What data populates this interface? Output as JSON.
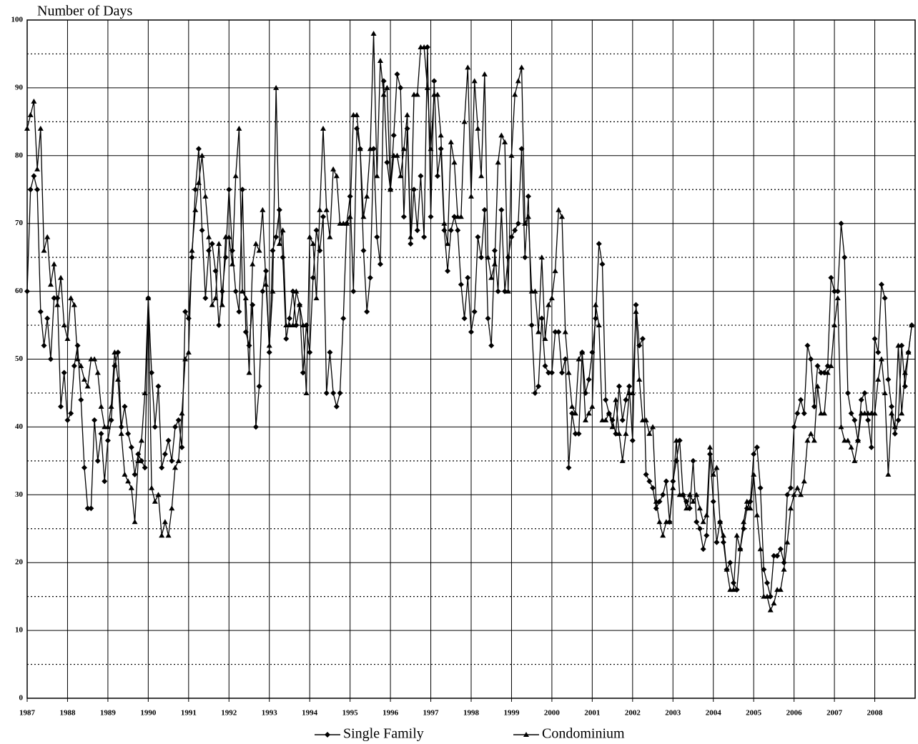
{
  "chart_data": {
    "type": "line",
    "y_label": "Number of Days",
    "categories": [
      "1987",
      null,
      null,
      null,
      null,
      null,
      null,
      null,
      null,
      null,
      null,
      null,
      "1988",
      null,
      null,
      null,
      null,
      null,
      null,
      null,
      null,
      null,
      null,
      null,
      "1989",
      null,
      null,
      null,
      null,
      null,
      null,
      null,
      null,
      null,
      null,
      null,
      "1990",
      null,
      null,
      null,
      null,
      null,
      null,
      null,
      null,
      null,
      null,
      null,
      "1991",
      null,
      null,
      null,
      null,
      null,
      null,
      null,
      null,
      null,
      null,
      null,
      "1992",
      null,
      null,
      null,
      null,
      null,
      null,
      null,
      null,
      null,
      null,
      null,
      "1993",
      null,
      null,
      null,
      null,
      null,
      null,
      null,
      null,
      null,
      null,
      null,
      "1994",
      null,
      null,
      null,
      null,
      null,
      null,
      null,
      null,
      null,
      null,
      null,
      "1995",
      null,
      null,
      null,
      null,
      null,
      null,
      null,
      null,
      null,
      null,
      null,
      "1996",
      null,
      null,
      null,
      null,
      null,
      null,
      null,
      null,
      null,
      null,
      null,
      "1997",
      null,
      null,
      null,
      null,
      null,
      null,
      null,
      null,
      null,
      null,
      null,
      "1998",
      null,
      null,
      null,
      null,
      null,
      null,
      null,
      null,
      null,
      null,
      null,
      "1999",
      null,
      null,
      null,
      null,
      null,
      null,
      null,
      null,
      null,
      null,
      null,
      "2000",
      null,
      null,
      null,
      null,
      null,
      null,
      null,
      null,
      null,
      null,
      null,
      "2001",
      null,
      null,
      null,
      null,
      null,
      null,
      null,
      null,
      null,
      null,
      null,
      "2002",
      null,
      null,
      null,
      null,
      null,
      null,
      null,
      null,
      null,
      null,
      null,
      "2003",
      null,
      null,
      null,
      null,
      null,
      null,
      null,
      null,
      null,
      null,
      null,
      "2004",
      null,
      null,
      null,
      null,
      null,
      null,
      null,
      null,
      null,
      null,
      null,
      "2005",
      null,
      null,
      null,
      null,
      null,
      null,
      null,
      null,
      null,
      null,
      null,
      "2006",
      null,
      null,
      null,
      null,
      null,
      null,
      null,
      null,
      null,
      null,
      null,
      "2007",
      null,
      null,
      null,
      null,
      null,
      null,
      null,
      null,
      null,
      null,
      null,
      "2008",
      null,
      null,
      null,
      null,
      null,
      null,
      null,
      null,
      null,
      null,
      null
    ],
    "series": [
      {
        "name": "Single Family",
        "color": "#000000",
        "marker": "diamond",
        "values": [
          60,
          75,
          77,
          75,
          57,
          52,
          56,
          50,
          59,
          59,
          43,
          48,
          41,
          42,
          49,
          52,
          44,
          34,
          28,
          28,
          41,
          35,
          39,
          32,
          38,
          41,
          49,
          51,
          40,
          43,
          39,
          37,
          33,
          36,
          35,
          34,
          59,
          48,
          40,
          46,
          34,
          36,
          38,
          35,
          40,
          41,
          37,
          57,
          56,
          65,
          75,
          81,
          69,
          59,
          66,
          67,
          63,
          55,
          60,
          65,
          75,
          66,
          60,
          57,
          75,
          54,
          52,
          58,
          40,
          46,
          60,
          63,
          51,
          66,
          68,
          72,
          65,
          53,
          56,
          60,
          55,
          58,
          48,
          55,
          51,
          62,
          69,
          66,
          71,
          45,
          51,
          45,
          43,
          45,
          56,
          70,
          74,
          60,
          84,
          81,
          66,
          57,
          62,
          81,
          68,
          64,
          91,
          79,
          75,
          83,
          92,
          90,
          71,
          84,
          67,
          75,
          69,
          77,
          68,
          96,
          71,
          91,
          77,
          81,
          69,
          63,
          69,
          71,
          69,
          61,
          56,
          62,
          54,
          57,
          68,
          65,
          72,
          56,
          52,
          66,
          60,
          72,
          60,
          65,
          68,
          69,
          70,
          81,
          65,
          74,
          55,
          45,
          46,
          56,
          49,
          48,
          48,
          54,
          54,
          48,
          50,
          34,
          42,
          39,
          39,
          51,
          45,
          47,
          51,
          56,
          67,
          64,
          44,
          42,
          41,
          39,
          46,
          41,
          44,
          46,
          38,
          58,
          52,
          53,
          33,
          32,
          31,
          28,
          29,
          30,
          32,
          26,
          32,
          35,
          38,
          30,
          29,
          28,
          35,
          26,
          25,
          22,
          24,
          36,
          29,
          23,
          26,
          23,
          19,
          20,
          17,
          16,
          22,
          25,
          28,
          29,
          36,
          37,
          31,
          19,
          17,
          15,
          21,
          21,
          22,
          20,
          30,
          31,
          40,
          42,
          44,
          42,
          52,
          50,
          43,
          49,
          48,
          48,
          49,
          62,
          60,
          60,
          70,
          65,
          45,
          42,
          41,
          38,
          44,
          45,
          41,
          37,
          53,
          51,
          61,
          59,
          47,
          43,
          39,
          41,
          52,
          46,
          51,
          55
        ]
      },
      {
        "name": "Condominium",
        "color": "#000000",
        "marker": "triangle",
        "values": [
          84,
          86,
          88,
          78,
          84,
          66,
          68,
          61,
          64,
          58,
          62,
          55,
          53,
          59,
          58,
          50,
          49,
          47,
          46,
          50,
          50,
          48,
          43,
          40,
          40,
          43,
          51,
          47,
          39,
          33,
          32,
          31,
          26,
          35,
          38,
          45,
          59,
          31,
          29,
          30,
          24,
          26,
          24,
          28,
          34,
          35,
          42,
          50,
          51,
          66,
          72,
          76,
          80,
          74,
          68,
          58,
          59,
          67,
          58,
          68,
          68,
          64,
          77,
          84,
          60,
          59,
          48,
          64,
          67,
          66,
          72,
          61,
          52,
          60,
          90,
          67,
          69,
          55,
          55,
          55,
          60,
          58,
          55,
          45,
          68,
          67,
          59,
          72,
          84,
          72,
          68,
          78,
          77,
          70,
          70,
          70,
          71,
          86,
          86,
          81,
          71,
          74,
          81,
          98,
          77,
          94,
          89,
          90,
          75,
          80,
          80,
          77,
          81,
          86,
          68,
          89,
          89,
          96,
          96,
          90,
          81,
          89,
          89,
          83,
          70,
          67,
          82,
          79,
          71,
          71,
          85,
          93,
          74,
          91,
          84,
          77,
          92,
          65,
          62,
          64,
          79,
          83,
          82,
          60,
          80,
          89,
          91,
          93,
          70,
          71,
          60,
          60,
          54,
          65,
          53,
          58,
          59,
          63,
          72,
          71,
          54,
          48,
          43,
          42,
          50,
          51,
          41,
          42,
          43,
          58,
          55,
          41,
          41,
          42,
          40,
          44,
          39,
          35,
          39,
          45,
          45,
          57,
          47,
          41,
          41,
          39,
          40,
          29,
          26,
          24,
          26,
          26,
          31,
          38,
          30,
          30,
          28,
          30,
          29,
          30,
          28,
          26,
          27,
          37,
          33,
          34,
          26,
          24,
          19,
          16,
          16,
          24,
          22,
          26,
          29,
          28,
          33,
          27,
          22,
          15,
          15,
          13,
          14,
          16,
          16,
          19,
          23,
          28,
          30,
          31,
          30,
          32,
          38,
          39,
          38,
          46,
          42,
          42,
          48,
          49,
          55,
          59,
          40,
          38,
          38,
          37,
          35,
          38,
          42,
          42,
          42,
          42,
          42,
          47,
          50,
          45,
          33,
          42,
          40,
          52,
          42,
          48,
          51,
          55
        ]
      }
    ],
    "ylim": [
      0,
      100
    ],
    "yticks": [
      0,
      10,
      20,
      30,
      40,
      50,
      60,
      70,
      80,
      90,
      100
    ],
    "minor_yticks": [
      5,
      15,
      25,
      35,
      45,
      55,
      65,
      75,
      85,
      95
    ],
    "grid": true,
    "legend": "bottom"
  }
}
